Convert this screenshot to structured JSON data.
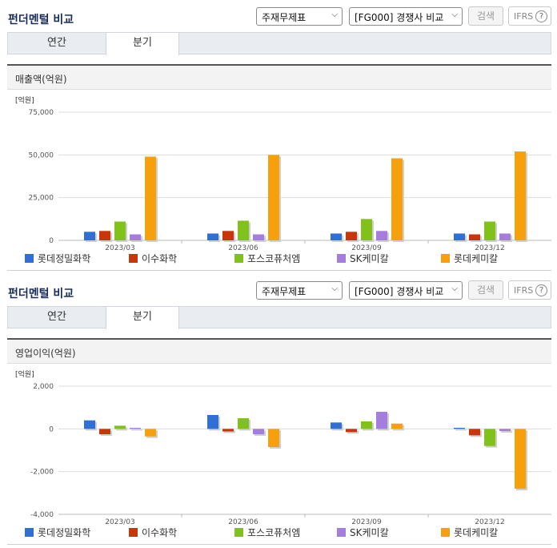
{
  "sections": [
    {
      "title": "펀더멘털 비교",
      "select_statement": "주재무제표",
      "select_compare": "[FG000] 경쟁사 비교",
      "search_label": "검색",
      "ifrs_label": "IFRS",
      "help_label": "?",
      "tabs": [
        "연간",
        "분기"
      ],
      "active_tab": "분기",
      "panel_title": "매출액(억원)"
    },
    {
      "title": "펀더멘털 비교",
      "select_statement": "주재무제표",
      "select_compare": "[FG000] 경쟁사 비교",
      "search_label": "검색",
      "ifrs_label": "IFRS",
      "help_label": "?",
      "tabs": [
        "연간",
        "분기"
      ],
      "active_tab": "분기",
      "panel_title": "영업이익(억원)"
    }
  ],
  "chart_data": [
    {
      "type": "bar",
      "title": "매출액(억원)",
      "unit_label": "[억원]",
      "categories": [
        "2023/03",
        "2023/06",
        "2023/09",
        "2023/12"
      ],
      "ylim": [
        0,
        75000
      ],
      "yticks": [
        0,
        25000,
        50000,
        75000
      ],
      "ytick_labels": [
        "0",
        "25,000",
        "50,000",
        "75,000"
      ],
      "grid": true,
      "legend_position": "bottom",
      "series": [
        {
          "name": "롯데정밀화학",
          "color": "#2f6fd6",
          "values": [
            5000,
            4000,
            4000,
            4000
          ]
        },
        {
          "name": "이수화학",
          "color": "#c9360c",
          "values": [
            5500,
            5500,
            5000,
            3500
          ]
        },
        {
          "name": "포스코퓨처엠",
          "color": "#80c21a",
          "values": [
            11000,
            11500,
            12500,
            11000
          ]
        },
        {
          "name": "SK케미칼",
          "color": "#a57ddd",
          "values": [
            3500,
            3500,
            5500,
            4000
          ]
        },
        {
          "name": "롯데케미칼",
          "color": "#f6a00e",
          "values": [
            49000,
            50000,
            48000,
            52000
          ]
        }
      ]
    },
    {
      "type": "bar",
      "title": "영업이익(억원)",
      "unit_label": "[억원]",
      "categories": [
        "2023/03",
        "2023/06",
        "2023/09",
        "2023/12"
      ],
      "ylim": [
        -4000,
        2000
      ],
      "yticks": [
        -4000,
        -2000,
        0,
        2000
      ],
      "ytick_labels": [
        "-4,000",
        "-2,000",
        "0",
        "2,000"
      ],
      "grid": true,
      "legend_position": "bottom",
      "series": [
        {
          "name": "롯데정밀화학",
          "color": "#2f6fd6",
          "values": [
            400,
            650,
            300,
            50
          ]
        },
        {
          "name": "이수화학",
          "color": "#c9360c",
          "values": [
            -250,
            -120,
            -150,
            -300
          ]
        },
        {
          "name": "포스코퓨처엠",
          "color": "#80c21a",
          "values": [
            150,
            500,
            350,
            -800
          ]
        },
        {
          "name": "SK케미칼",
          "color": "#a57ddd",
          "values": [
            50,
            -250,
            800,
            -100
          ]
        },
        {
          "name": "롯데케미칼",
          "color": "#f6a00e",
          "values": [
            -350,
            -850,
            250,
            -2800
          ]
        }
      ]
    }
  ]
}
